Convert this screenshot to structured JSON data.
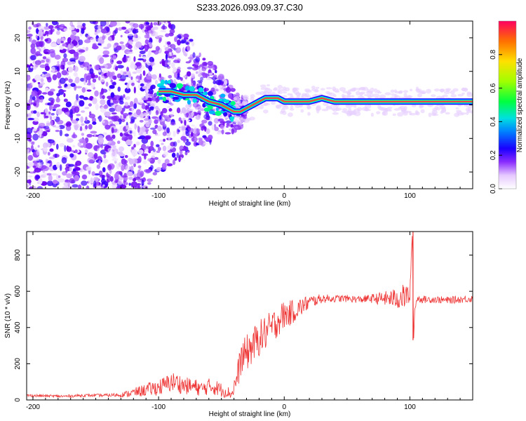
{
  "title": "S233.2026.093.09.37.C30",
  "chart_data": [
    {
      "id": "spectrogram",
      "type": "heatmap",
      "title": "S233.2026.093.09.37.C30",
      "xlabel": "Height of straight line (km)",
      "ylabel": "Frequency (Hz)",
      "xlim": [
        -205,
        150
      ],
      "ylim": [
        -25,
        25
      ],
      "xticks": [
        -200,
        -100,
        0,
        100
      ],
      "yticks": [
        -20,
        -10,
        0,
        10,
        20
      ],
      "colorbar": {
        "label": "Normalized spectral amplitude",
        "range": [
          0.0,
          1.0
        ],
        "ticks": [
          "0.0",
          "0.2",
          "0.4",
          "0.6",
          "0.8"
        ],
        "tick_values": [
          0.0,
          0.2,
          0.4,
          0.6,
          0.8
        ],
        "colors": [
          "#ffffff",
          "#c07aff",
          "#7a00ff",
          "#0000ff",
          "#00d0ff",
          "#00ff40",
          "#d0ff00",
          "#ffa000",
          "#ff0050"
        ]
      },
      "ridge": {
        "x": [
          -100,
          -90,
          -80,
          -70,
          -60,
          -50,
          -45,
          -40,
          -35,
          -30,
          -25,
          -20,
          -15,
          -10,
          -5,
          0,
          10,
          20,
          30,
          40,
          50,
          60,
          80,
          100,
          120,
          150
        ],
        "y": [
          4,
          4,
          3,
          3,
          1,
          0,
          -1,
          -2,
          -2,
          -1,
          0,
          1,
          2,
          2,
          2,
          1,
          1,
          1,
          2,
          1,
          1,
          1,
          1,
          1,
          1,
          1
        ]
      }
    },
    {
      "id": "snr",
      "type": "line",
      "xlabel": "Height of straight line (km)",
      "ylabel": "SNR (10 * v/v)",
      "xlim": [
        -205,
        150
      ],
      "ylim": [
        0,
        930
      ],
      "xticks": [
        -200,
        -100,
        0,
        100
      ],
      "yticks": [
        0,
        200,
        400,
        600,
        800
      ],
      "color": "#ee3333",
      "series": [
        {
          "name": "SNR",
          "x": [
            -205,
            -190,
            -175,
            -160,
            -145,
            -130,
            -120,
            -110,
            -100,
            -95,
            -90,
            -85,
            -80,
            -75,
            -70,
            -65,
            -60,
            -55,
            -50,
            -45,
            -42,
            -40,
            -37,
            -35,
            -30,
            -25,
            -20,
            -15,
            -10,
            -5,
            0,
            5,
            10,
            15,
            20,
            25,
            30,
            40,
            50,
            60,
            70,
            80,
            90,
            95,
            100,
            102,
            103,
            104,
            106,
            110,
            120,
            130,
            140,
            150
          ],
          "y": [
            25,
            22,
            20,
            25,
            25,
            28,
            40,
            55,
            70,
            80,
            100,
            95,
            80,
            75,
            70,
            60,
            75,
            70,
            55,
            45,
            30,
            70,
            130,
            220,
            260,
            300,
            340,
            370,
            400,
            440,
            470,
            480,
            500,
            520,
            540,
            550,
            560,
            560,
            560,
            555,
            560,
            560,
            560,
            570,
            580,
            930,
            330,
            520,
            560,
            555,
            555,
            550,
            555,
            560
          ],
          "noise": [
            8,
            8,
            8,
            8,
            8,
            12,
            25,
            35,
            45,
            50,
            55,
            55,
            50,
            45,
            45,
            40,
            45,
            45,
            40,
            35,
            20,
            50,
            80,
            90,
            100,
            100,
            100,
            100,
            90,
            90,
            80,
            70,
            60,
            50,
            40,
            30,
            25,
            20,
            20,
            20,
            25,
            40,
            60,
            70,
            60,
            0,
            0,
            30,
            20,
            20,
            20,
            20,
            20,
            20
          ]
        }
      ]
    }
  ]
}
